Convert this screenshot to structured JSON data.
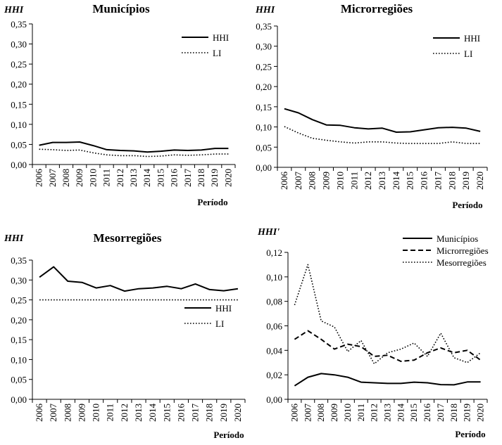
{
  "chart_data": [
    {
      "type": "line",
      "title": "Municípios",
      "ylabel": "HHI",
      "xlabel": "Período",
      "categories": [
        "2006",
        "2007",
        "2008",
        "2009",
        "2010",
        "2011",
        "2012",
        "2013",
        "2014",
        "2015",
        "2016",
        "2017",
        "2018",
        "2019",
        "2020"
      ],
      "ylim": [
        0,
        0.35
      ],
      "yticks": [
        "0,00",
        "0,05",
        "0,10",
        "0,15",
        "0,20",
        "0,25",
        "0,30",
        "0,35"
      ],
      "legend": "top-right",
      "series": [
        {
          "name": "HHI",
          "style": "solid",
          "values": [
            0.048,
            0.055,
            0.055,
            0.056,
            0.047,
            0.037,
            0.035,
            0.034,
            0.031,
            0.033,
            0.036,
            0.035,
            0.036,
            0.04,
            0.04
          ]
        },
        {
          "name": "LI",
          "style": "dotted",
          "values": [
            0.038,
            0.037,
            0.035,
            0.036,
            0.029,
            0.024,
            0.022,
            0.022,
            0.02,
            0.021,
            0.024,
            0.023,
            0.024,
            0.026,
            0.026
          ]
        }
      ]
    },
    {
      "type": "line",
      "title": "Microrregiões",
      "ylabel": "HHI",
      "xlabel": "Período",
      "categories": [
        "2006",
        "2007",
        "2008",
        "2009",
        "2010",
        "2011",
        "2012",
        "2013",
        "2014",
        "2015",
        "2016",
        "2017",
        "2018",
        "2019",
        "2020"
      ],
      "ylim": [
        0,
        0.35
      ],
      "yticks": [
        "0,00",
        "0,05",
        "0,10",
        "0,15",
        "0,20",
        "0,25",
        "0,30",
        "0,35"
      ],
      "legend": "top-right",
      "series": [
        {
          "name": "HHI",
          "style": "solid",
          "values": [
            0.145,
            0.135,
            0.118,
            0.105,
            0.104,
            0.098,
            0.095,
            0.097,
            0.087,
            0.088,
            0.093,
            0.098,
            0.099,
            0.097,
            0.089
          ]
        },
        {
          "name": "LI",
          "style": "dotted",
          "values": [
            0.101,
            0.085,
            0.072,
            0.067,
            0.063,
            0.06,
            0.063,
            0.063,
            0.06,
            0.059,
            0.059,
            0.059,
            0.063,
            0.059,
            0.059
          ]
        }
      ]
    },
    {
      "type": "line",
      "title": "Mesorregiões",
      "ylabel": "HHI",
      "xlabel": "Período",
      "categories": [
        "2006",
        "2007",
        "2008",
        "2009",
        "2010",
        "2011",
        "2012",
        "2013",
        "2014",
        "2015",
        "2016",
        "2017",
        "2018",
        "2019",
        "2020"
      ],
      "ylim": [
        0,
        0.35
      ],
      "yticks": [
        "0,00",
        "0,05",
        "0,10",
        "0,15",
        "0,20",
        "0,25",
        "0,30",
        "0,35"
      ],
      "legend": "right",
      "series": [
        {
          "name": "HHI",
          "style": "solid",
          "values": [
            0.307,
            0.333,
            0.297,
            0.294,
            0.28,
            0.286,
            0.272,
            0.278,
            0.28,
            0.284,
            0.278,
            0.29,
            0.276,
            0.273,
            0.278
          ]
        },
        {
          "name": "LI",
          "style": "dotted",
          "values": [
            0.25,
            0.25,
            0.25,
            0.25,
            0.25,
            0.25,
            0.25,
            0.25,
            0.25,
            0.25,
            0.25,
            0.25,
            0.25,
            0.25,
            0.25
          ]
        }
      ]
    },
    {
      "type": "line",
      "title": "",
      "ylabel": "HHI'",
      "xlabel": "Período",
      "categories": [
        "2006",
        "2007",
        "2008",
        "2009",
        "2010",
        "2011",
        "2012",
        "2013",
        "2014",
        "2015",
        "2016",
        "2017",
        "2018",
        "2019",
        "2020"
      ],
      "ylim": [
        0,
        0.12
      ],
      "yticks": [
        "0,00",
        "0,02",
        "0,04",
        "0,06",
        "0,08",
        "0,10",
        "0,12"
      ],
      "legend": "top-right",
      "series": [
        {
          "name": "Municípios",
          "style": "solid",
          "values": [
            0.011,
            0.018,
            0.021,
            0.02,
            0.018,
            0.014,
            0.0135,
            0.013,
            0.013,
            0.014,
            0.0135,
            0.012,
            0.0118,
            0.0142,
            0.0142
          ]
        },
        {
          "name": "Microrregiões",
          "style": "dashed",
          "values": [
            0.049,
            0.056,
            0.049,
            0.041,
            0.045,
            0.043,
            0.035,
            0.036,
            0.031,
            0.032,
            0.038,
            0.042,
            0.038,
            0.04,
            0.032
          ]
        },
        {
          "name": "Mesorregiões",
          "style": "dotted",
          "values": [
            0.077,
            0.11,
            0.064,
            0.059,
            0.039,
            0.048,
            0.029,
            0.038,
            0.041,
            0.046,
            0.035,
            0.054,
            0.034,
            0.03,
            0.038
          ]
        }
      ]
    }
  ]
}
